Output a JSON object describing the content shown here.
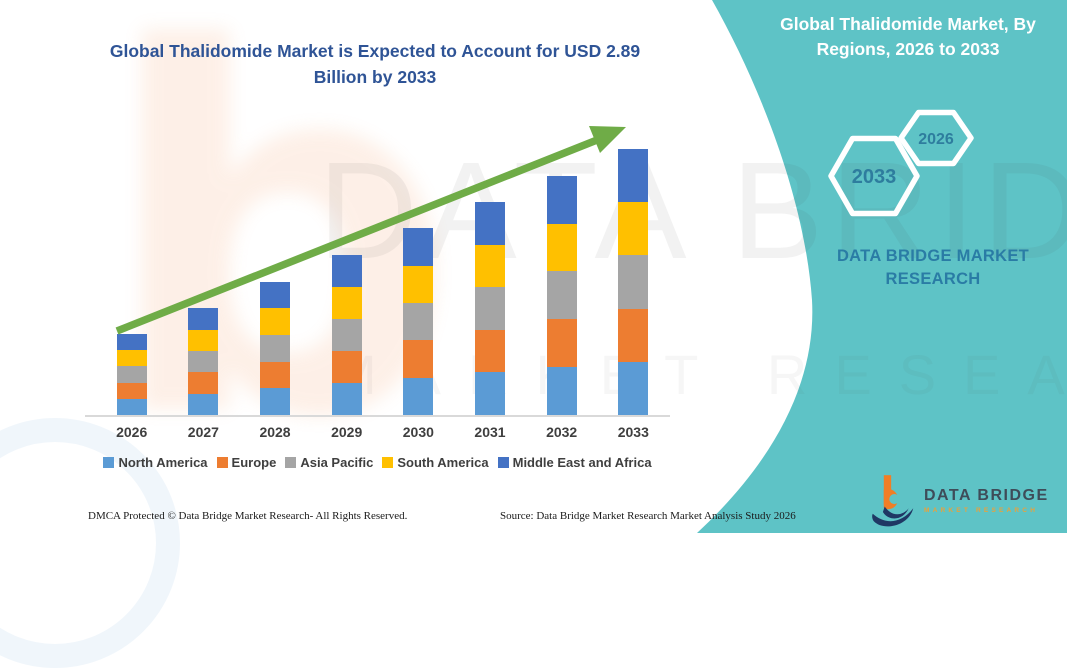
{
  "title": "Global Thalidomide Market is Expected to Account for USD 2.89 Billion by 2033",
  "side_panel": {
    "bg_color": "#5EC3C6",
    "heading_line1": "Global Thalidomide Market, By",
    "heading_line2": "Regions, 2026 to 2033",
    "hexagon_large_label": "2033",
    "hexagon_small_label": "2026",
    "brand_line1": "DATA BRIDGE MARKET",
    "brand_line2": "RESEARCH",
    "brand_text_color": "#2A7CA5"
  },
  "chart_data": {
    "type": "bar",
    "subtype": "stacked-vertical",
    "title": "Global Thalidomide Market is Expected to Account for USD 2.89 Billion by 2033",
    "unit": "USD Billion",
    "categories": [
      "2026",
      "2027",
      "2028",
      "2029",
      "2030",
      "2031",
      "2032",
      "2033"
    ],
    "series": [
      {
        "name": "North America",
        "color": "#5B9BD5",
        "values": [
          0.176,
          0.232,
          0.29,
          0.348,
          0.406,
          0.462,
          0.52,
          0.578
        ]
      },
      {
        "name": "Europe",
        "color": "#ED7D31",
        "values": [
          0.176,
          0.232,
          0.29,
          0.348,
          0.406,
          0.462,
          0.52,
          0.578
        ]
      },
      {
        "name": "Asia Pacific",
        "color": "#A5A5A5",
        "values": [
          0.176,
          0.232,
          0.29,
          0.348,
          0.406,
          0.462,
          0.52,
          0.578
        ]
      },
      {
        "name": "South America",
        "color": "#FFC000",
        "values": [
          0.176,
          0.232,
          0.29,
          0.348,
          0.406,
          0.462,
          0.52,
          0.578
        ]
      },
      {
        "name": "Middle East and Africa",
        "color": "#4472C4",
        "values": [
          0.176,
          0.232,
          0.29,
          0.348,
          0.406,
          0.462,
          0.52,
          0.578
        ]
      }
    ],
    "totals": [
      0.88,
      1.16,
      1.45,
      1.74,
      2.03,
      2.31,
      2.6,
      2.89
    ],
    "ylim": [
      0,
      3.0
    ],
    "gridlines": false,
    "legend_position": "bottom",
    "annotations": {
      "trend_arrow": "upward green arrow from 2026 to 2033",
      "arrow_color": "#6FAC47"
    }
  },
  "watermark": {
    "glyph": "b",
    "line1": "DATA BRIDGE",
    "line2": "MARKET RESEARCH"
  },
  "footer": {
    "left": "DMCA Protected © Data Bridge Market Research-  All Rights Reserved.",
    "right": "Source: Data Bridge Market Research  Market Analysis Study 2026"
  },
  "logo": {
    "name": "DATA BRIDGE",
    "sub": "MARKET RESEARCH"
  }
}
